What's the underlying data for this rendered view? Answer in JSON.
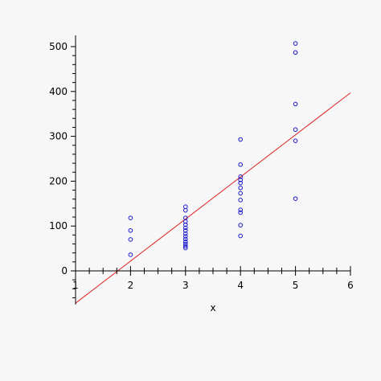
{
  "chart_data": {
    "type": "scatter",
    "title": "",
    "xlabel": "x",
    "ylabel": "",
    "xlim": [
      1,
      6
    ],
    "ylim": [
      -75,
      525
    ],
    "grid": false,
    "x_ticks": [
      1,
      2,
      3,
      4,
      5,
      6
    ],
    "y_ticks": [
      0,
      100,
      200,
      300,
      400,
      500
    ],
    "x_minor_step": 0.25,
    "y_minor_step": 20,
    "colors": {
      "points": "#1a1acc",
      "fit_line": "#dd2222",
      "axis": "#000000",
      "background": "#f7f7f7"
    },
    "series": [
      {
        "type": "scatter",
        "marker": "circle-open",
        "points": [
          [
            2,
            118
          ],
          [
            2,
            90
          ],
          [
            2,
            70
          ],
          [
            2,
            36
          ],
          [
            3,
            143
          ],
          [
            3,
            135
          ],
          [
            3,
            118
          ],
          [
            3,
            110
          ],
          [
            3,
            103
          ],
          [
            3,
            96
          ],
          [
            3,
            90
          ],
          [
            3,
            83
          ],
          [
            3,
            77
          ],
          [
            3,
            71
          ],
          [
            3,
            65
          ],
          [
            3,
            60
          ],
          [
            3,
            55
          ],
          [
            3,
            51
          ],
          [
            4,
            293
          ],
          [
            4,
            237
          ],
          [
            4,
            210
          ],
          [
            4,
            203
          ],
          [
            4,
            196
          ],
          [
            4,
            185
          ],
          [
            4,
            173
          ],
          [
            4,
            158
          ],
          [
            4,
            136
          ],
          [
            4,
            130
          ],
          [
            4,
            102
          ],
          [
            4,
            78
          ],
          [
            5,
            507
          ],
          [
            5,
            487
          ],
          [
            5,
            372
          ],
          [
            5,
            315
          ],
          [
            5,
            290
          ],
          [
            5,
            161
          ]
        ]
      },
      {
        "type": "line",
        "points": [
          [
            1,
            -72
          ],
          [
            6,
            397
          ]
        ]
      }
    ]
  }
}
